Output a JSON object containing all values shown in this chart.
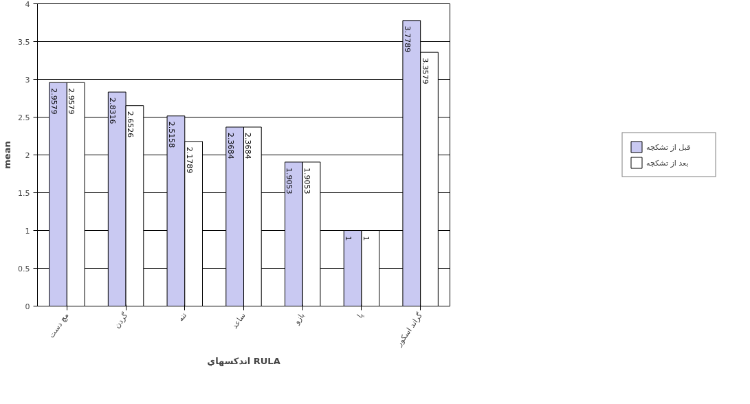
{
  "chart_data": {
    "type": "bar",
    "xlabel": "اندکسهاي RULA",
    "ylabel": "mean",
    "categories": [
      "مچ دست",
      "گردن",
      "تنه",
      "ساعد",
      "بازو",
      "پا",
      "گراند اسکور"
    ],
    "series": [
      {
        "name": "قبل از تشکچه",
        "color": "#c9c9f2",
        "values": [
          2.9579,
          2.8316,
          2.5158,
          2.3684,
          1.9053,
          1,
          3.7789
        ]
      },
      {
        "name": "بعد از تشکچه",
        "color": "#ffffff",
        "values": [
          2.9579,
          2.6526,
          2.1789,
          2.3684,
          1.9053,
          1,
          3.3579
        ]
      }
    ],
    "ylim": [
      0,
      4
    ],
    "yticks": [
      0,
      0.5,
      1,
      1.5,
      2,
      2.5,
      3,
      3.5,
      4
    ],
    "grid": "y",
    "legend": "right",
    "data_labels": true
  }
}
